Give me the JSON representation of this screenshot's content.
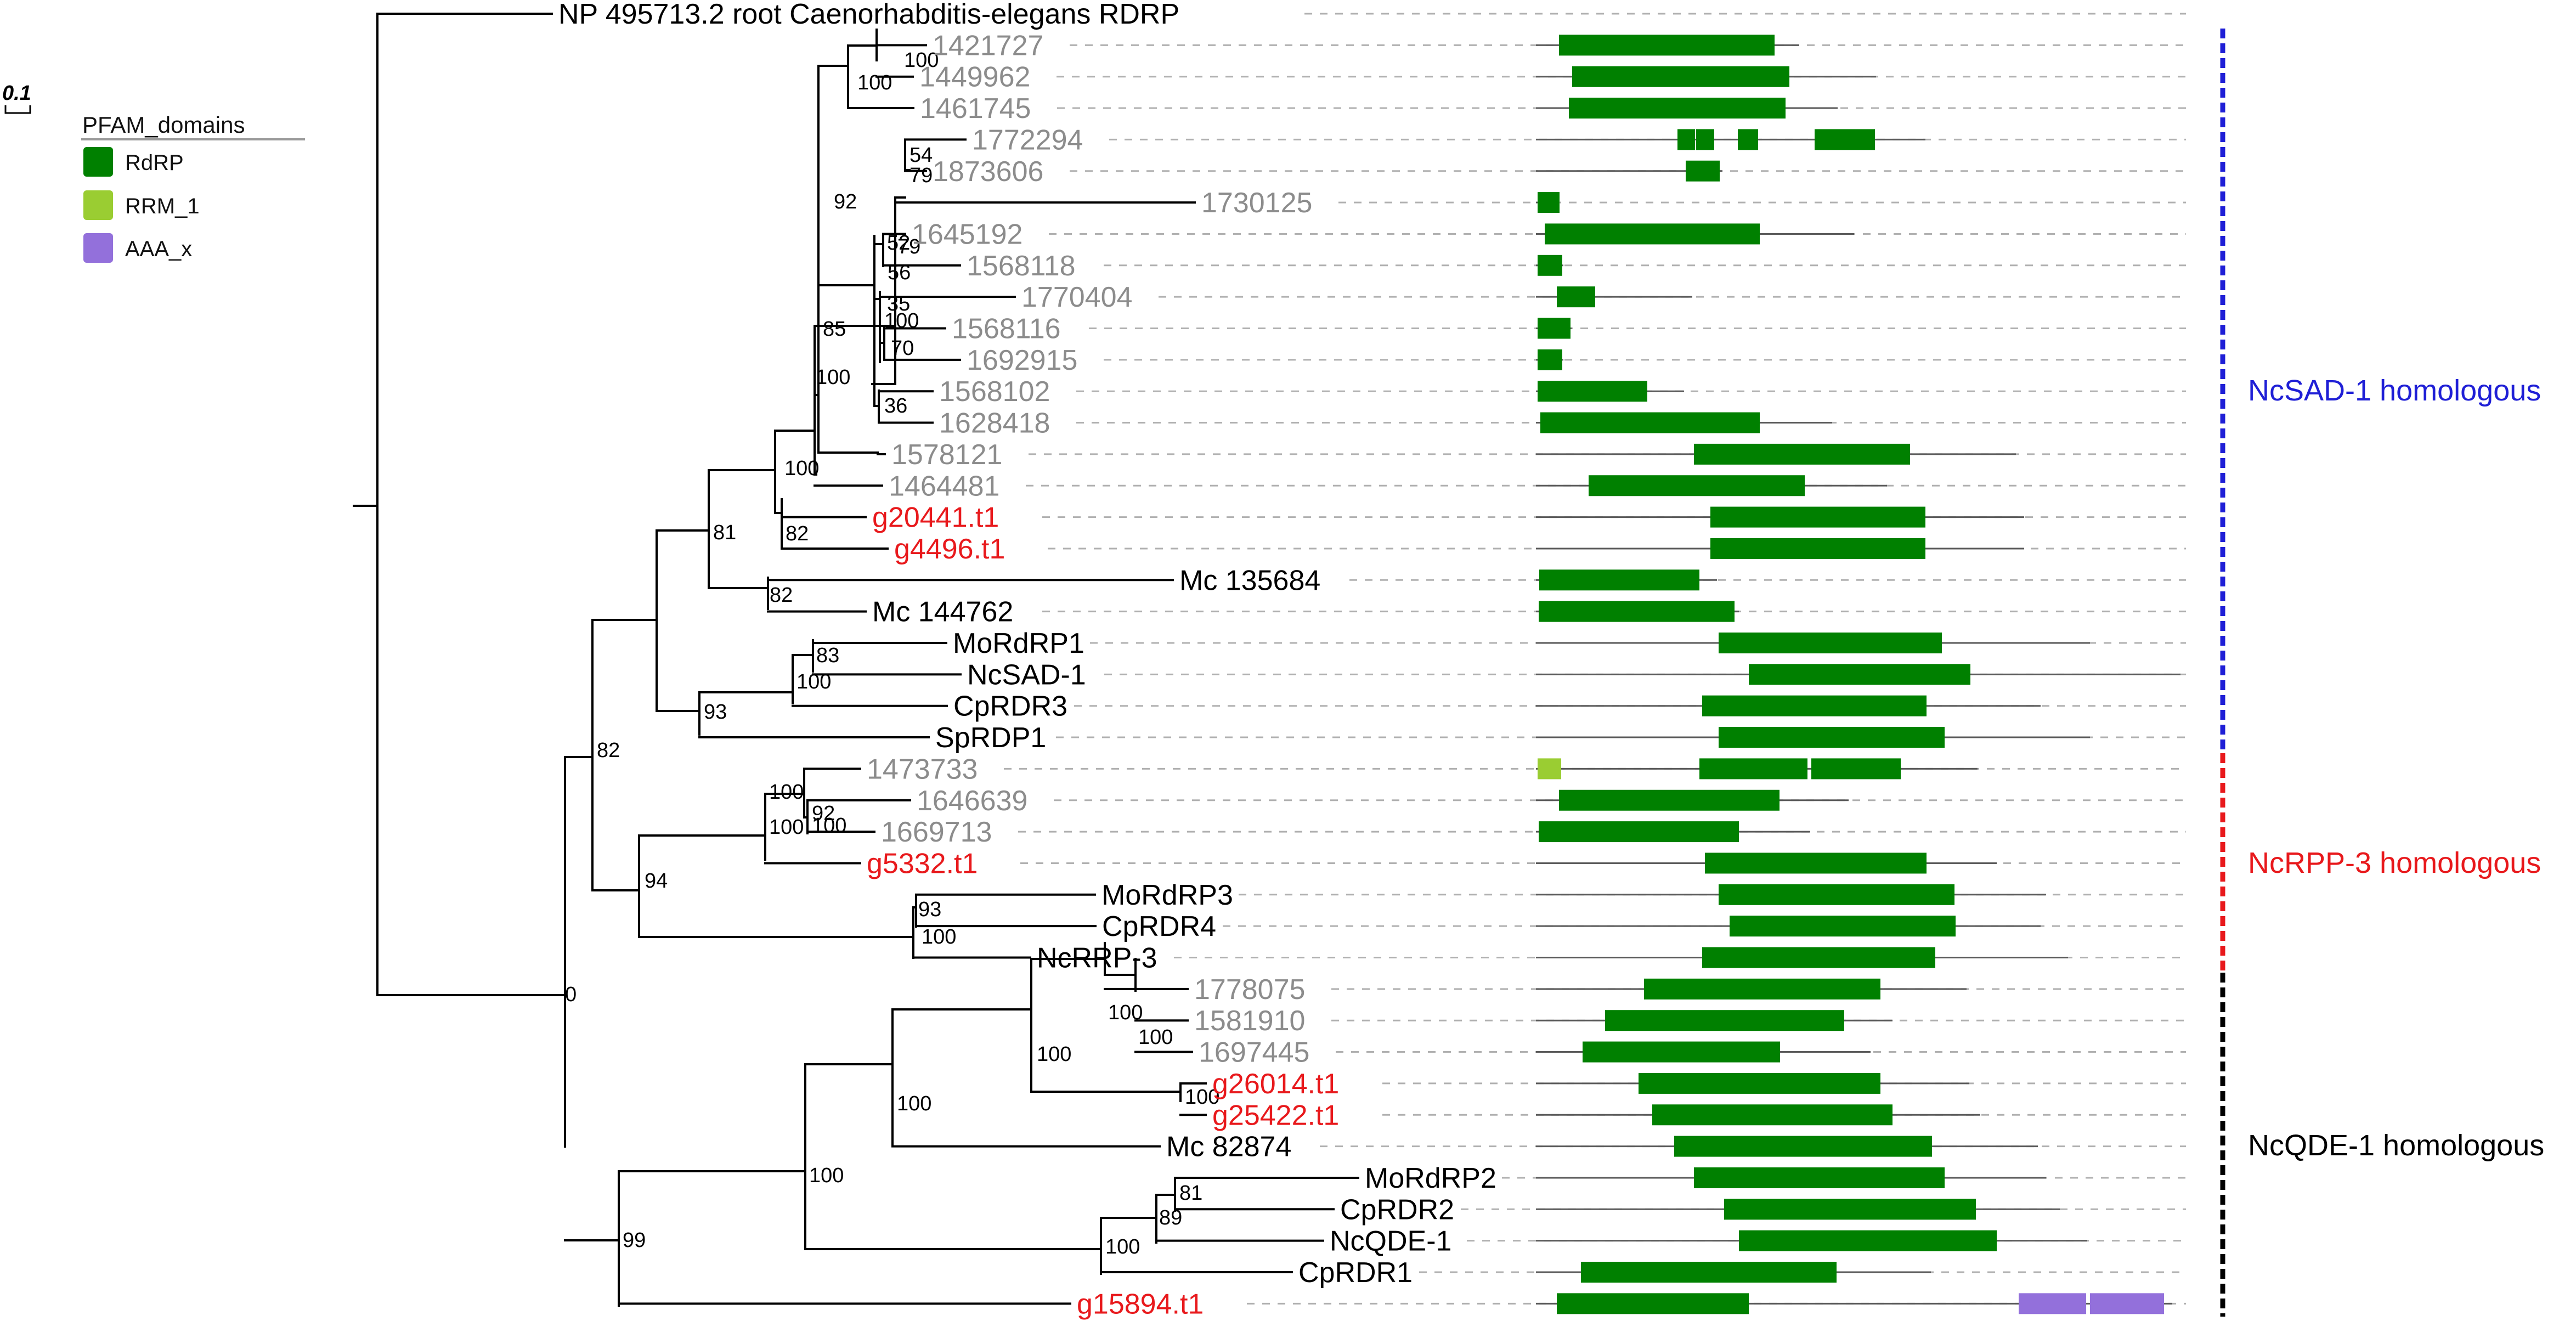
{
  "scale_bar": {
    "label": "0.1"
  },
  "legend": {
    "title": "PFAM_domains",
    "items": [
      {
        "label": "RdRP",
        "color": "#008000"
      },
      {
        "label": "RRM_1",
        "color": "#9acd32"
      },
      {
        "label": "AAA_x",
        "color": "#9370db"
      }
    ]
  },
  "colors": {
    "reference_taxon": "#000000",
    "other_taxon": "#8c8c8c",
    "highlight_taxon": "#e8191c",
    "branch": "#000000",
    "guide": "#b0b0b0",
    "protein_line": "#5a5a5a"
  },
  "taxa": [
    {
      "label": "NP 495713.2 root Caenorhabditis-elegans RDRP",
      "style": "ref"
    },
    {
      "label": "1421727",
      "style": "other"
    },
    {
      "label": "1449962",
      "style": "other"
    },
    {
      "label": "1461745",
      "style": "other"
    },
    {
      "label": "1772294",
      "style": "other"
    },
    {
      "label": "1873606",
      "style": "other"
    },
    {
      "label": "1730125",
      "style": "other"
    },
    {
      "label": "1645192",
      "style": "other"
    },
    {
      "label": "1568118",
      "style": "other"
    },
    {
      "label": "1770404",
      "style": "other"
    },
    {
      "label": "1568116",
      "style": "other"
    },
    {
      "label": "1692915",
      "style": "other"
    },
    {
      "label": "1568102",
      "style": "other"
    },
    {
      "label": "1628418",
      "style": "other"
    },
    {
      "label": "1578121",
      "style": "other"
    },
    {
      "label": "1464481",
      "style": "other"
    },
    {
      "label": "g20441.t1",
      "style": "highlight"
    },
    {
      "label": "g4496.t1",
      "style": "highlight"
    },
    {
      "label": "Mc 135684",
      "style": "ref"
    },
    {
      "label": "Mc 144762",
      "style": "ref"
    },
    {
      "label": "MoRdRP1",
      "style": "ref"
    },
    {
      "label": "NcSAD-1",
      "style": "ref"
    },
    {
      "label": "CpRDR3",
      "style": "ref"
    },
    {
      "label": "SpRDP1",
      "style": "ref"
    },
    {
      "label": "1473733",
      "style": "other"
    },
    {
      "label": "1646639",
      "style": "other"
    },
    {
      "label": "1669713",
      "style": "other"
    },
    {
      "label": "g5332.t1",
      "style": "highlight"
    },
    {
      "label": "MoRdRP3",
      "style": "ref"
    },
    {
      "label": "CpRDR4",
      "style": "ref"
    },
    {
      "label": "NcRRP-3",
      "style": "ref"
    },
    {
      "label": "1778075",
      "style": "other"
    },
    {
      "label": "1581910",
      "style": "other"
    },
    {
      "label": "1697445",
      "style": "other"
    },
    {
      "label": "g26014.t1",
      "style": "highlight"
    },
    {
      "label": "g25422.t1",
      "style": "highlight"
    },
    {
      "label": "Mc 82874",
      "style": "ref"
    },
    {
      "label": "MoRdRP2",
      "style": "ref"
    },
    {
      "label": "CpRDR2",
      "style": "ref"
    },
    {
      "label": "NcQDE-1",
      "style": "ref"
    },
    {
      "label": "CpRDR1",
      "style": "ref"
    },
    {
      "label": "g15894.t1",
      "style": "highlight"
    }
  ],
  "bootstrap": [
    "100",
    "100",
    "54",
    "79",
    "92",
    "52",
    "79",
    "56",
    "35",
    "100",
    "70",
    "85",
    "36",
    "100",
    "100",
    "81",
    "82",
    "82",
    "83",
    "100",
    "93",
    "100",
    "100",
    "92",
    "100",
    "94",
    "93",
    "100",
    "0",
    "100",
    "100",
    "100",
    "100",
    "100",
    "100",
    "81",
    "89",
    "100",
    "99",
    "82"
  ],
  "clades": [
    {
      "label": "NcSAD-1 homologous",
      "color": "#1f1fd6"
    },
    {
      "label": "NcRPP-3 homologous",
      "color": "#e8191c"
    },
    {
      "label": "NcQDE-1 homologous",
      "color": "#000000"
    }
  ]
}
